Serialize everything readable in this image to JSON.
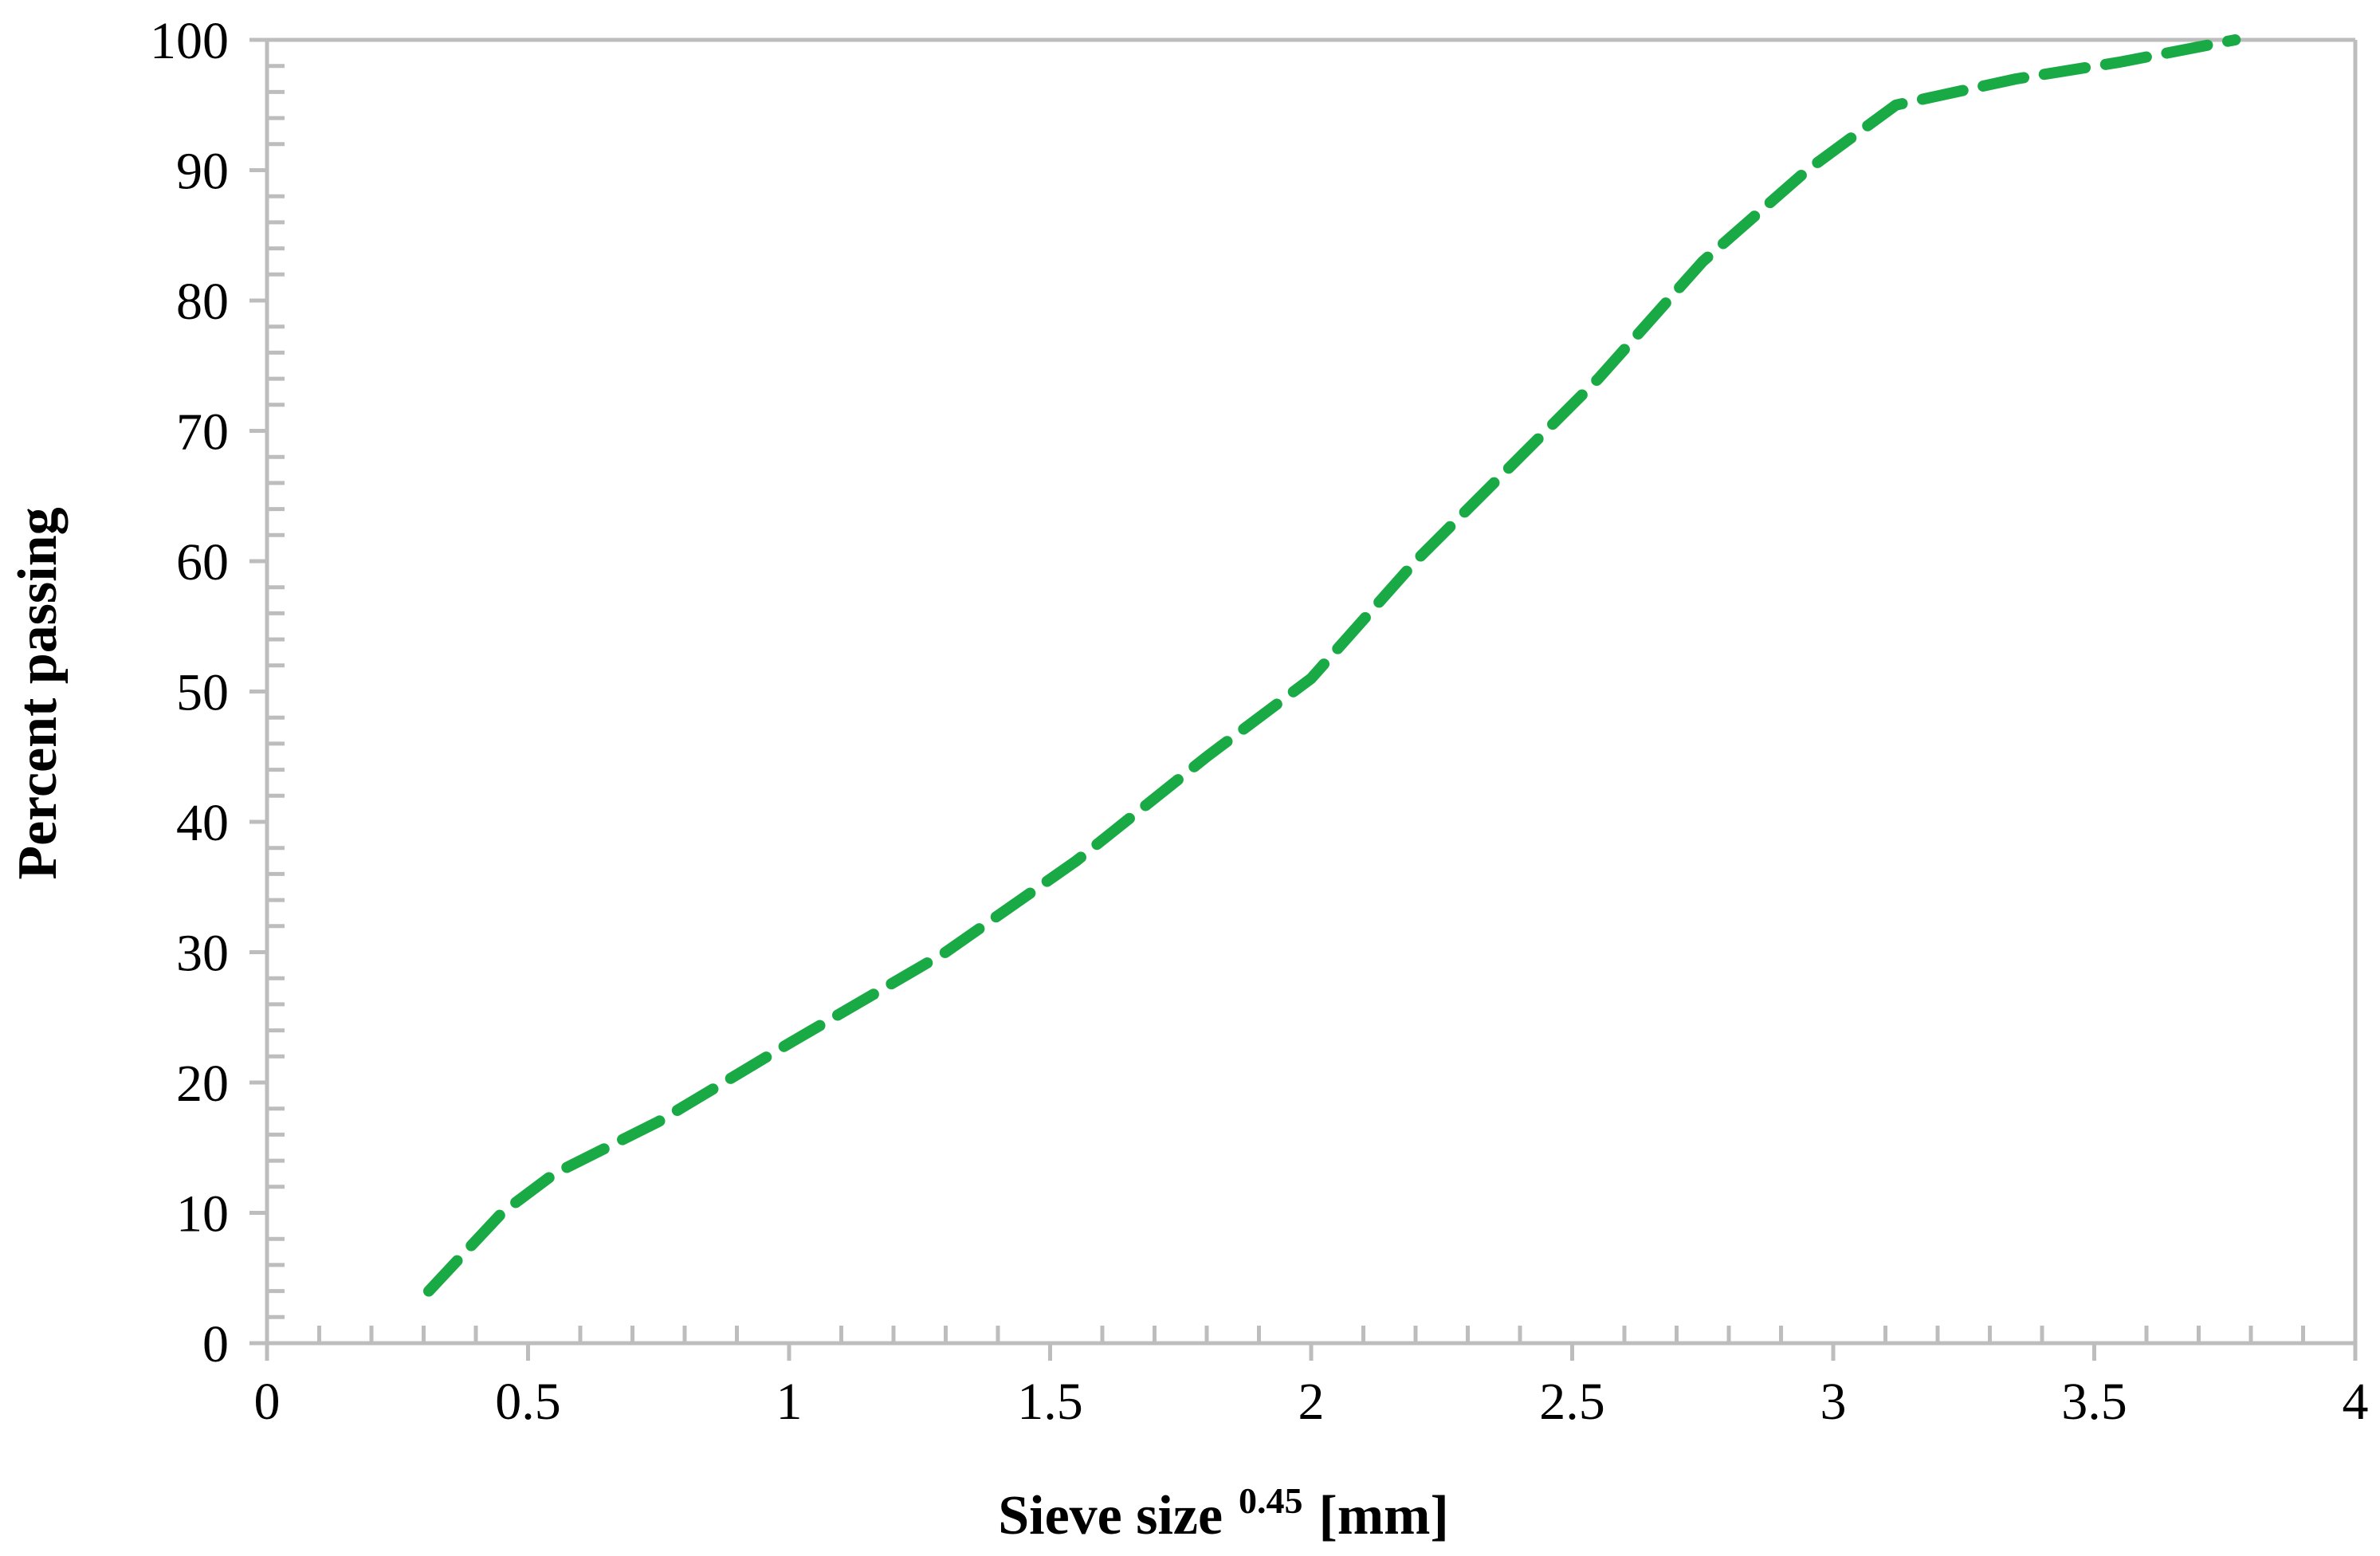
{
  "chart_data": {
    "type": "line",
    "title": "",
    "xlabel": "Sieve size",
    "xlabel_superscript": "0.45",
    "xlabel_unit": "[mm]",
    "ylabel": "Percent passing",
    "xlim": [
      0,
      4
    ],
    "ylim": [
      0,
      100
    ],
    "x_ticks": [
      "0",
      "0.5",
      "1",
      "1.5",
      "2",
      "2.5",
      "3",
      "3.5",
      "4"
    ],
    "y_ticks": [
      "0",
      "10",
      "20",
      "30",
      "40",
      "50",
      "60",
      "70",
      "80",
      "90",
      "100"
    ],
    "grid": false,
    "legend": "none",
    "series": [
      {
        "line_style": "dashed",
        "color": "#1aaa45",
        "x": [
          0.31,
          0.45,
          0.55,
          0.75,
          1.0,
          1.3,
          1.55,
          1.8,
          2.0,
          2.2,
          2.4,
          2.55,
          2.75,
          2.95,
          3.12,
          3.35,
          3.55,
          3.77
        ],
        "y": [
          4,
          10,
          13,
          17,
          23,
          30,
          37,
          45,
          51,
          60,
          68,
          74,
          83,
          90,
          95,
          97,
          98.3,
          100
        ]
      }
    ]
  }
}
